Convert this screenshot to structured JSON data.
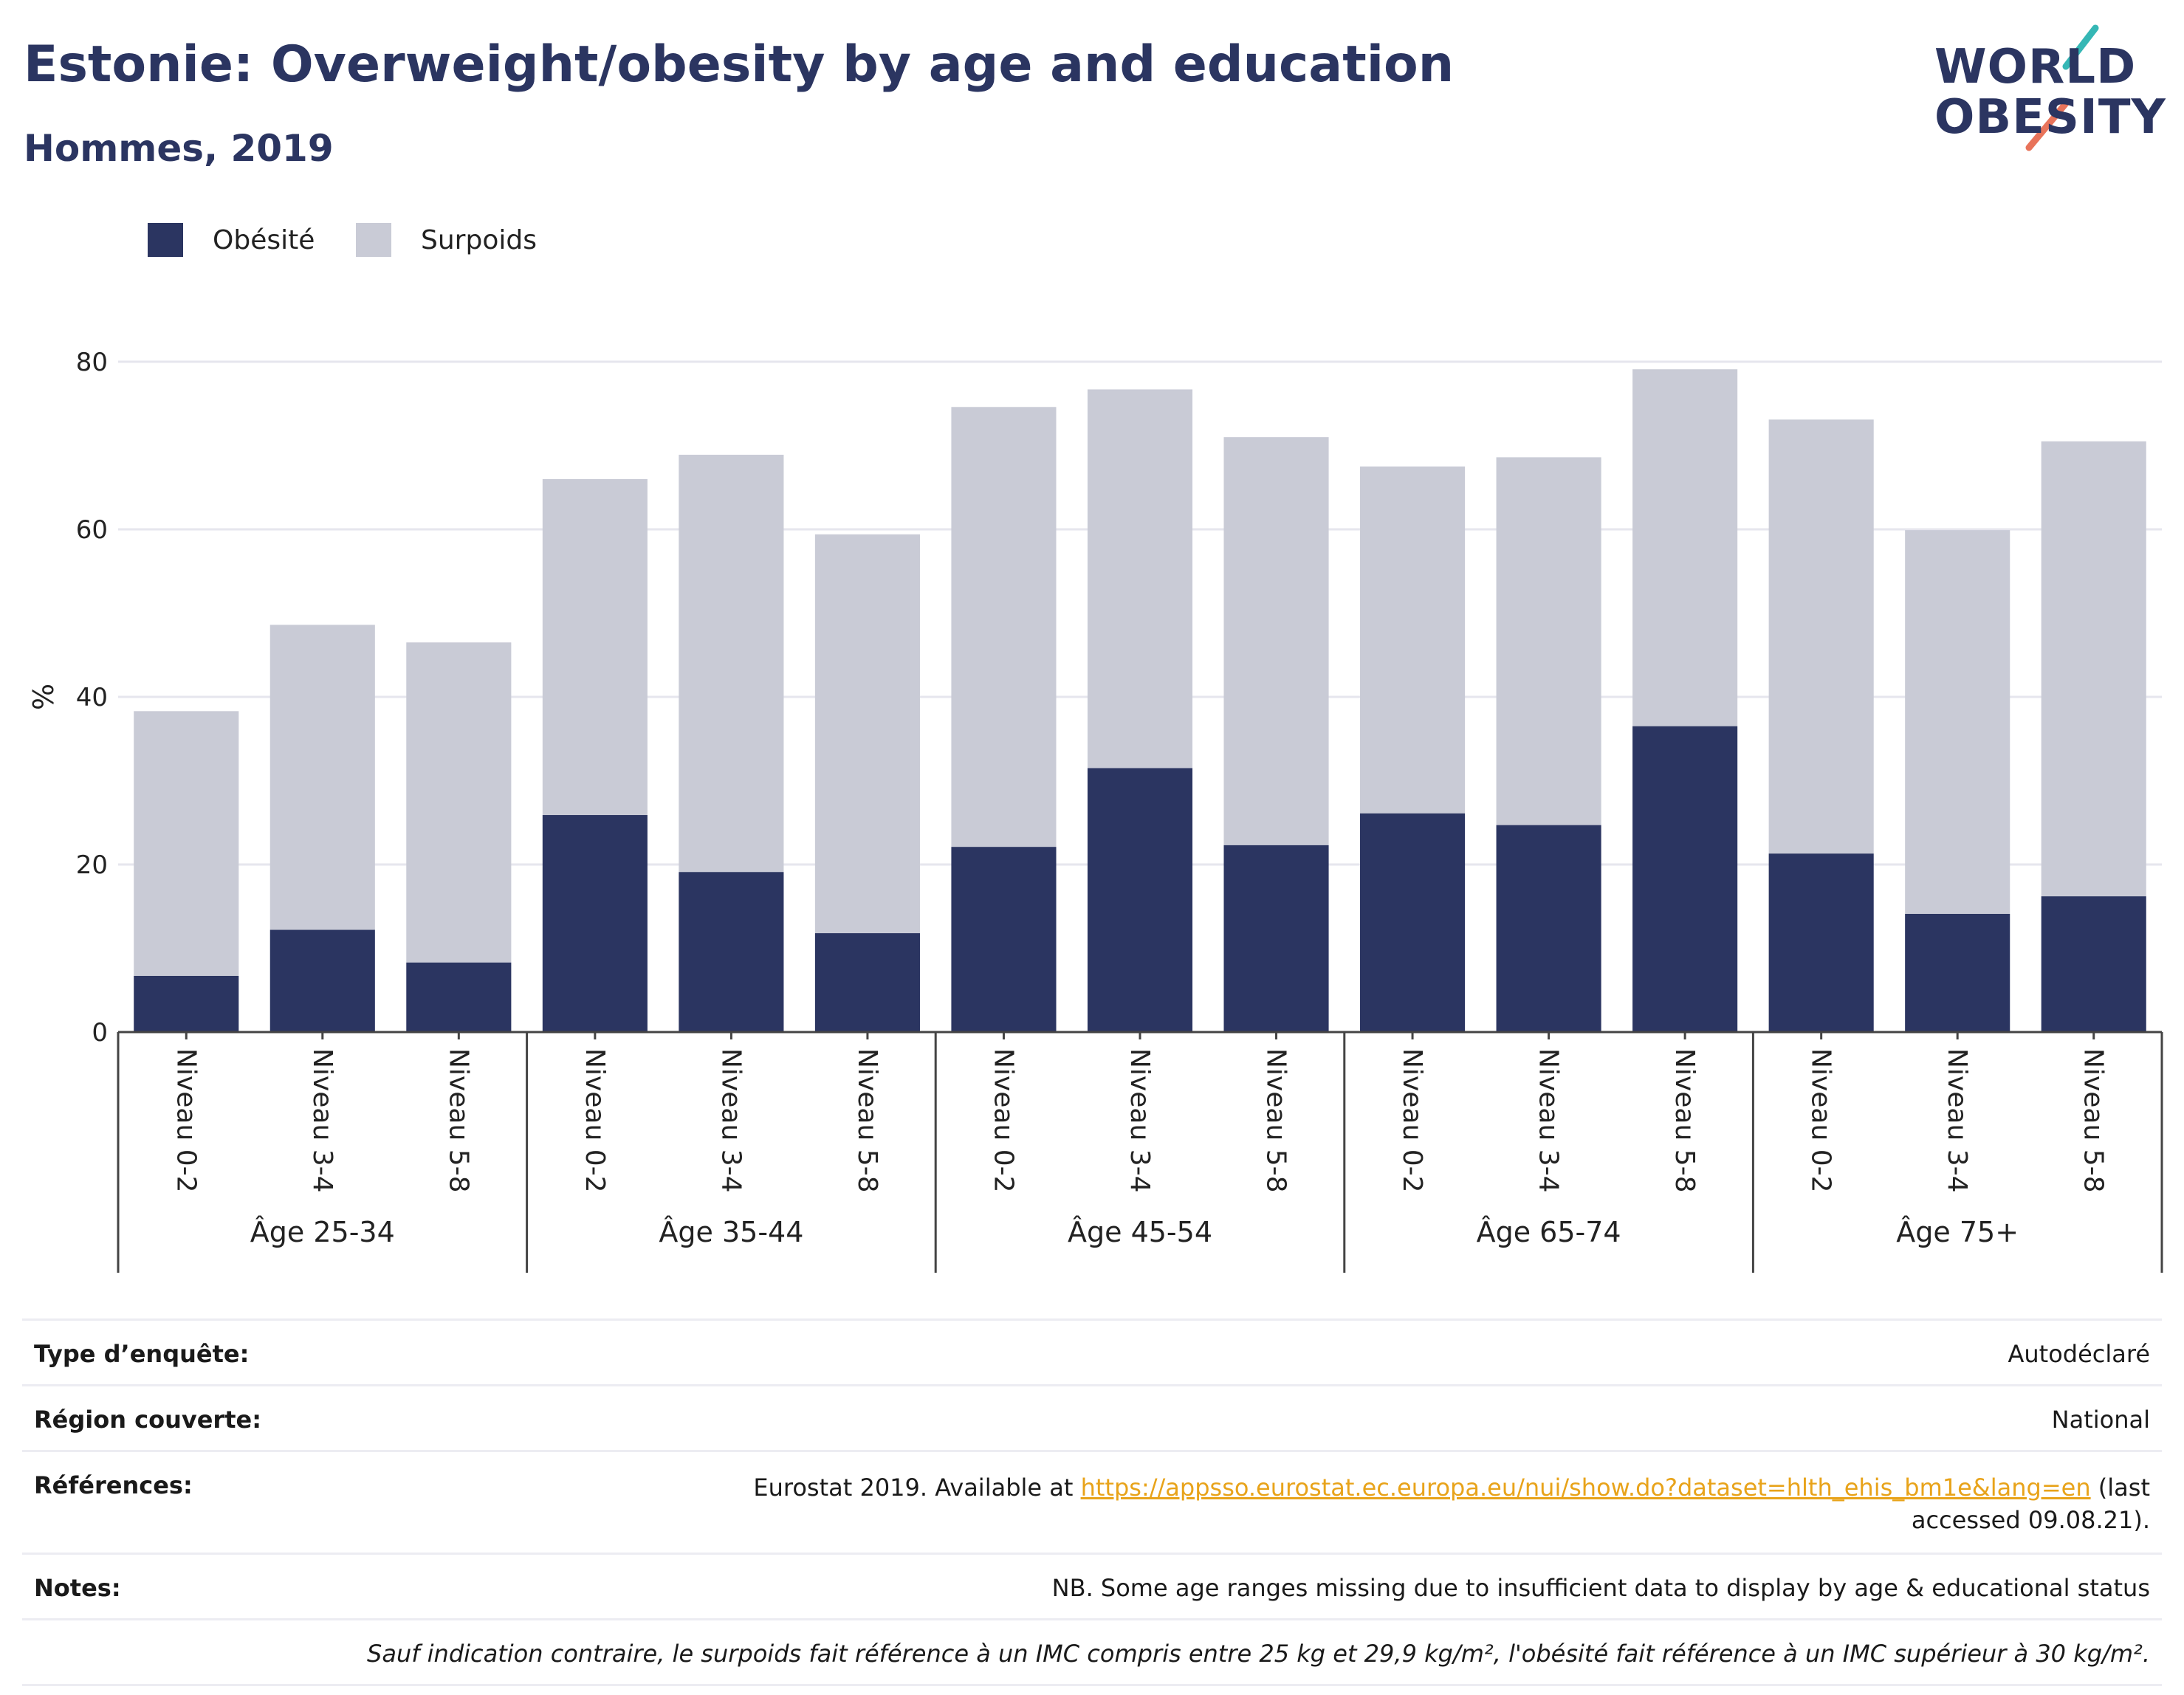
{
  "header": {
    "title": "Estonie: Overweight/obesity by age and education",
    "subtitle": "Hommes, 2019"
  },
  "logo": {
    "line1": "WORLD",
    "line2": "OBESITY"
  },
  "colors": {
    "obesity": "#2b3561",
    "overweight": "#c9cbd6",
    "grid": "#e6e6ee",
    "axis": "#444444"
  },
  "chart_data": {
    "type": "bar",
    "stacked": true,
    "ylabel": "%",
    "ylim": [
      0,
      80
    ],
    "yticks": [
      0,
      20,
      40,
      60,
      80
    ],
    "grid": true,
    "legend_position": "top-left",
    "series": [
      {
        "name": "Obésité",
        "values": [
          6.7,
          12.2,
          8.3,
          25.9,
          19.1,
          11.8,
          22.1,
          31.5,
          22.3,
          26.1,
          24.7,
          36.5,
          21.3,
          14.1,
          16.2
        ]
      },
      {
        "name": "Surpoids",
        "values": [
          31.6,
          36.4,
          38.2,
          40.1,
          49.8,
          47.6,
          52.5,
          45.2,
          48.7,
          41.4,
          43.9,
          42.6,
          51.8,
          45.8,
          54.3
        ]
      }
    ],
    "categories": [
      "Niveau 0-2",
      "Niveau 3-4",
      "Niveau 5-8",
      "Niveau 0-2",
      "Niveau 3-4",
      "Niveau 5-8",
      "Niveau 0-2",
      "Niveau 3-4",
      "Niveau 5-8",
      "Niveau 0-2",
      "Niveau 3-4",
      "Niveau 5-8",
      "Niveau 0-2",
      "Niveau 3-4",
      "Niveau 5-8"
    ],
    "groups": [
      {
        "label": "Âge 25-34",
        "start": 0,
        "count": 3
      },
      {
        "label": "Âge 35-44",
        "start": 3,
        "count": 3
      },
      {
        "label": "Âge 45-54",
        "start": 6,
        "count": 3
      },
      {
        "label": "Âge 65-74",
        "start": 9,
        "count": 3
      },
      {
        "label": "Âge 75+",
        "start": 12,
        "count": 3
      }
    ]
  },
  "footer": {
    "survey_label": "Type d’enquête:",
    "survey_value": "Autodéclaré",
    "region_label": "Région couverte:",
    "region_value": "National",
    "refs_label": "Références:",
    "refs_prefix": "Eurostat 2019. Available at ",
    "refs_link": "https://appsso.eurostat.ec.europa.eu/nui/show.do?dataset=hlth_ehis_bm1e&lang=en",
    "refs_suffix": " (last accessed 09.08.21).",
    "notes_label": "Notes:",
    "notes_value": "NB. Some age ranges missing due to insufficient data to display by age & educational status",
    "definition": "Sauf indication contraire, le surpoids fait référence à un IMC compris entre 25 kg et 29,9 kg/m², l'obésité fait référence à un IMC supérieur à 30 kg/m²."
  }
}
